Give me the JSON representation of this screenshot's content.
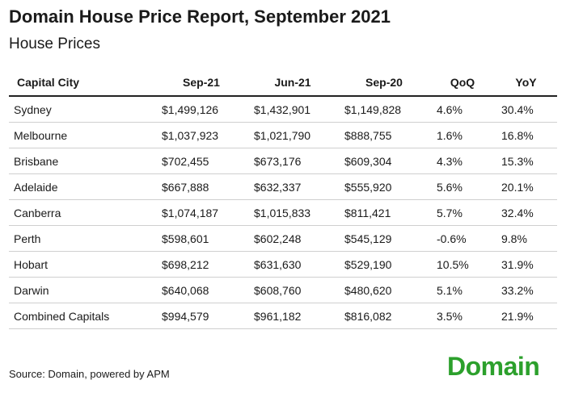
{
  "chart_data": {
    "type": "table",
    "title": "Domain House Price Report, September 2021",
    "subtitle": "House Prices",
    "columns": [
      "Capital City",
      "Sep-21",
      "Jun-21",
      "Sep-20",
      "QoQ",
      "YoY"
    ],
    "rows": [
      [
        "Sydney",
        "$1,499,126",
        "$1,432,901",
        "$1,149,828",
        "4.6%",
        "30.4%"
      ],
      [
        "Melbourne",
        "$1,037,923",
        "$1,021,790",
        "$888,755",
        "1.6%",
        "16.8%"
      ],
      [
        "Brisbane",
        "$702,455",
        "$673,176",
        "$609,304",
        "4.3%",
        "15.3%"
      ],
      [
        "Adelaide",
        "$667,888",
        "$632,337",
        "$555,920",
        "5.6%",
        "20.1%"
      ],
      [
        "Canberra",
        "$1,074,187",
        "$1,015,833",
        "$811,421",
        "5.7%",
        "32.4%"
      ],
      [
        "Perth",
        "$598,601",
        "$602,248",
        "$545,129",
        "-0.6%",
        "9.8%"
      ],
      [
        "Hobart",
        "$698,212",
        "$631,630",
        "$529,190",
        "10.5%",
        "31.9%"
      ],
      [
        "Darwin",
        "$640,068",
        "$608,760",
        "$480,620",
        "5.1%",
        "33.2%"
      ],
      [
        "Combined Capitals",
        "$994,579",
        "$961,182",
        "$816,082",
        "3.5%",
        "21.9%"
      ]
    ],
    "source": "Source: Domain, powered by APM",
    "logo_text": "Domain",
    "colors": {
      "logo": "#2ca02c",
      "header_rule": "#222222",
      "row_rule": "#cfcfcf"
    }
  }
}
